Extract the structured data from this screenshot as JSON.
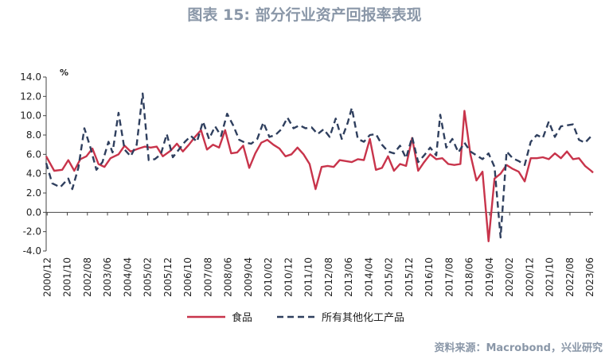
{
  "title": "图表 15: 部分行业资产回报率表现",
  "source": "资料来源：Macrobond，兴业研究",
  "chart_data": {
    "type": "line",
    "unit": "%",
    "ylim": [
      -4.0,
      14.0
    ],
    "yticks": [
      "14.0",
      "12.0",
      "10.0",
      "8.0",
      "6.0",
      "4.0",
      "2.0",
      "0.0",
      "-2.0",
      "-4.0"
    ],
    "xticks": [
      "2000/12",
      "2001/10",
      "2002/08",
      "2003/06",
      "2004/04",
      "2005/02",
      "2005/12",
      "2006/10",
      "2007/08",
      "2008/06",
      "2009/04",
      "2010/02",
      "2010/12",
      "2011/10",
      "2012/08",
      "2013/06",
      "2014/04",
      "2015/02",
      "2015/12",
      "2016/10",
      "2017/08",
      "2018/06",
      "2019/04",
      "2020/02",
      "2020/12",
      "2021/10",
      "2022/08",
      "2023/06"
    ],
    "xrange": [
      2000.917,
      2023.583
    ],
    "legend_position": "bottom",
    "series": [
      {
        "name": "食品",
        "color": "#c8344b",
        "style": "solid",
        "points": [
          [
            2000.917,
            5.8
          ],
          [
            2001.25,
            4.3
          ],
          [
            2001.583,
            4.4
          ],
          [
            2001.833,
            5.4
          ],
          [
            2002.083,
            4.3
          ],
          [
            2002.333,
            5.5
          ],
          [
            2002.583,
            5.8
          ],
          [
            2002.833,
            6.6
          ],
          [
            2003.083,
            5.0
          ],
          [
            2003.333,
            4.7
          ],
          [
            2003.583,
            5.6
          ],
          [
            2003.917,
            6.0
          ],
          [
            2004.167,
            6.9
          ],
          [
            2004.417,
            6.3
          ],
          [
            2004.75,
            6.6
          ],
          [
            2005.0,
            6.8
          ],
          [
            2005.25,
            6.7
          ],
          [
            2005.5,
            6.8
          ],
          [
            2005.75,
            5.8
          ],
          [
            2006.083,
            6.4
          ],
          [
            2006.333,
            7.1
          ],
          [
            2006.583,
            6.3
          ],
          [
            2006.833,
            7.0
          ],
          [
            2007.083,
            7.8
          ],
          [
            2007.333,
            8.5
          ],
          [
            2007.583,
            6.5
          ],
          [
            2007.833,
            7.0
          ],
          [
            2008.083,
            6.7
          ],
          [
            2008.333,
            8.5
          ],
          [
            2008.583,
            6.1
          ],
          [
            2008.833,
            6.2
          ],
          [
            2009.083,
            6.9
          ],
          [
            2009.333,
            4.6
          ],
          [
            2009.583,
            6.1
          ],
          [
            2009.833,
            7.2
          ],
          [
            2010.083,
            7.5
          ],
          [
            2010.333,
            7.0
          ],
          [
            2010.583,
            6.6
          ],
          [
            2010.833,
            5.8
          ],
          [
            2011.083,
            6.0
          ],
          [
            2011.333,
            6.7
          ],
          [
            2011.583,
            6.0
          ],
          [
            2011.833,
            5.0
          ],
          [
            2012.083,
            2.4
          ],
          [
            2012.333,
            4.7
          ],
          [
            2012.583,
            4.8
          ],
          [
            2012.833,
            4.7
          ],
          [
            2013.083,
            5.4
          ],
          [
            2013.333,
            5.3
          ],
          [
            2013.583,
            5.2
          ],
          [
            2013.833,
            5.5
          ],
          [
            2014.083,
            5.4
          ],
          [
            2014.333,
            7.6
          ],
          [
            2014.583,
            4.4
          ],
          [
            2014.833,
            4.6
          ],
          [
            2015.083,
            5.8
          ],
          [
            2015.333,
            4.3
          ],
          [
            2015.583,
            5.0
          ],
          [
            2015.833,
            4.8
          ],
          [
            2016.083,
            7.7
          ],
          [
            2016.333,
            4.3
          ],
          [
            2016.583,
            5.2
          ],
          [
            2016.833,
            6.0
          ],
          [
            2017.083,
            5.5
          ],
          [
            2017.333,
            5.6
          ],
          [
            2017.583,
            5.0
          ],
          [
            2017.833,
            4.9
          ],
          [
            2018.083,
            5.0
          ],
          [
            2018.25,
            10.5
          ],
          [
            2018.5,
            6.0
          ],
          [
            2018.75,
            3.3
          ],
          [
            2019.0,
            4.2
          ],
          [
            2019.25,
            -3.0
          ],
          [
            2019.5,
            3.5
          ],
          [
            2019.75,
            4.0
          ],
          [
            2020.0,
            4.9
          ],
          [
            2020.25,
            4.5
          ],
          [
            2020.5,
            4.2
          ],
          [
            2020.75,
            3.2
          ],
          [
            2021.0,
            5.6
          ],
          [
            2021.25,
            5.6
          ],
          [
            2021.5,
            5.7
          ],
          [
            2021.75,
            5.5
          ],
          [
            2022.0,
            6.1
          ],
          [
            2022.25,
            5.6
          ],
          [
            2022.5,
            6.3
          ],
          [
            2022.75,
            5.5
          ],
          [
            2023.0,
            5.6
          ],
          [
            2023.25,
            4.8
          ],
          [
            2023.5,
            4.3
          ],
          [
            2023.583,
            4.1
          ]
        ]
      },
      {
        "name": "所有其他化工产品",
        "color": "#2f3f5e",
        "style": "dashed",
        "points": [
          [
            2000.917,
            5.1
          ],
          [
            2001.167,
            3.0
          ],
          [
            2001.5,
            2.6
          ],
          [
            2001.833,
            3.5
          ],
          [
            2002.0,
            2.4
          ],
          [
            2002.25,
            4.6
          ],
          [
            2002.5,
            8.7
          ],
          [
            2002.75,
            6.7
          ],
          [
            2003.0,
            4.4
          ],
          [
            2003.25,
            5.2
          ],
          [
            2003.5,
            7.3
          ],
          [
            2003.667,
            6.2
          ],
          [
            2003.917,
            10.3
          ],
          [
            2004.167,
            6.5
          ],
          [
            2004.417,
            5.8
          ],
          [
            2004.667,
            7.0
          ],
          [
            2004.917,
            12.3
          ],
          [
            2005.167,
            5.4
          ],
          [
            2005.417,
            5.5
          ],
          [
            2005.667,
            6.0
          ],
          [
            2005.917,
            8.1
          ],
          [
            2006.167,
            5.7
          ],
          [
            2006.417,
            6.5
          ],
          [
            2006.667,
            7.3
          ],
          [
            2006.917,
            7.9
          ],
          [
            2007.167,
            7.3
          ],
          [
            2007.417,
            9.4
          ],
          [
            2007.667,
            7.6
          ],
          [
            2007.917,
            8.9
          ],
          [
            2008.167,
            7.9
          ],
          [
            2008.417,
            10.2
          ],
          [
            2008.667,
            9.0
          ],
          [
            2008.917,
            7.5
          ],
          [
            2009.167,
            7.2
          ],
          [
            2009.417,
            7.1
          ],
          [
            2009.667,
            7.6
          ],
          [
            2009.917,
            9.3
          ],
          [
            2010.167,
            7.8
          ],
          [
            2010.417,
            8.0
          ],
          [
            2010.667,
            8.6
          ],
          [
            2010.917,
            9.8
          ],
          [
            2011.167,
            8.7
          ],
          [
            2011.417,
            9.0
          ],
          [
            2011.667,
            8.7
          ],
          [
            2011.917,
            8.8
          ],
          [
            2012.167,
            8.1
          ],
          [
            2012.417,
            8.6
          ],
          [
            2012.667,
            7.8
          ],
          [
            2012.917,
            9.7
          ],
          [
            2013.167,
            7.6
          ],
          [
            2013.417,
            9.3
          ],
          [
            2013.583,
            10.8
          ],
          [
            2013.833,
            7.6
          ],
          [
            2014.083,
            7.3
          ],
          [
            2014.333,
            8.0
          ],
          [
            2014.583,
            8.1
          ],
          [
            2014.833,
            7.0
          ],
          [
            2015.083,
            6.3
          ],
          [
            2015.333,
            6.1
          ],
          [
            2015.583,
            6.9
          ],
          [
            2015.833,
            5.6
          ],
          [
            2016.083,
            7.8
          ],
          [
            2016.333,
            5.2
          ],
          [
            2016.583,
            5.9
          ],
          [
            2016.833,
            6.7
          ],
          [
            2017.083,
            5.9
          ],
          [
            2017.25,
            10.1
          ],
          [
            2017.5,
            6.7
          ],
          [
            2017.75,
            7.6
          ],
          [
            2018.0,
            6.2
          ],
          [
            2018.25,
            7.2
          ],
          [
            2018.5,
            6.3
          ],
          [
            2018.75,
            5.9
          ],
          [
            2019.0,
            5.5
          ],
          [
            2019.25,
            6.1
          ],
          [
            2019.5,
            4.7
          ],
          [
            2019.75,
            -2.6
          ],
          [
            2020.0,
            6.3
          ],
          [
            2020.25,
            5.6
          ],
          [
            2020.5,
            5.3
          ],
          [
            2020.75,
            4.9
          ],
          [
            2021.0,
            7.3
          ],
          [
            2021.25,
            8.0
          ],
          [
            2021.5,
            7.7
          ],
          [
            2021.75,
            9.4
          ],
          [
            2022.0,
            7.8
          ],
          [
            2022.25,
            8.9
          ],
          [
            2022.5,
            9.0
          ],
          [
            2022.75,
            9.1
          ],
          [
            2023.0,
            7.5
          ],
          [
            2023.25,
            7.2
          ],
          [
            2023.583,
            8.1
          ]
        ]
      }
    ]
  }
}
